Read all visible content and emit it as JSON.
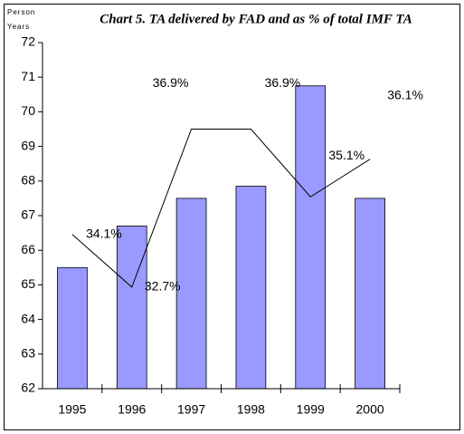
{
  "chart_data": {
    "type": "bar_line",
    "title": "Chart 5.  TA delivered by FAD and as % of total IMF TA",
    "ylabel": [
      "Person",
      "Years"
    ],
    "categories": [
      "1995",
      "1996",
      "1997",
      "1998",
      "1999",
      "2000"
    ],
    "series": [
      {
        "type": "bar",
        "color": "#9999ff",
        "values": [
          65.5,
          66.7,
          67.5,
          67.85,
          70.75,
          67.5
        ]
      },
      {
        "type": "line",
        "axis": "y2",
        "color": "#000000",
        "values": [
          34.1,
          32.7,
          36.9,
          36.9,
          35.1,
          36.1
        ],
        "value_labels": [
          "34.1%",
          "32.7%",
          "36.9%",
          "36.9%",
          "35.1%",
          "36.1%"
        ]
      }
    ],
    "ylim": [
      62,
      72
    ],
    "yticks": [
      62,
      63,
      64,
      65,
      66,
      67,
      68,
      69,
      70,
      71,
      72
    ],
    "y2lim": [
      30,
      39.2
    ]
  }
}
